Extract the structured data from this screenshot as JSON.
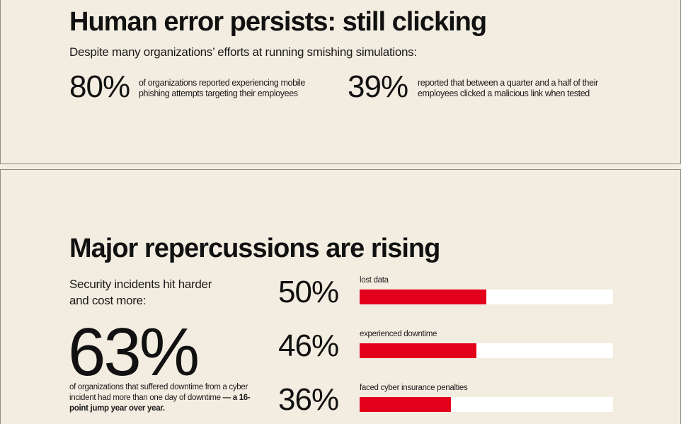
{
  "section1": {
    "title": "Human error persists: still clicking",
    "subtitle": "Despite many organizations’ efforts at running smishing simulations:",
    "stats": [
      {
        "value": "80%",
        "text": "of organizations reported experiencing mobile phishing attempts targeting their employees"
      },
      {
        "value": "39%",
        "text": "reported that between a quarter and a half of their employees clicked a malicious link when tested"
      }
    ]
  },
  "section2": {
    "title": "Major repercussions are rising",
    "intro": "Security incidents hit harder and cost more:",
    "headline_stat": "63%",
    "headline_text": "of organizations that suffered downtime from a cyber incident had more than one day of downtime",
    "headline_emphasis": "— a 16-point jump year over year.",
    "accent_color": "#e3001b"
  },
  "chart_data": {
    "type": "bar",
    "orientation": "horizontal",
    "categories": [
      "lost data",
      "experienced downtime",
      "faced cyber insurance penalties"
    ],
    "values": [
      50,
      46,
      36
    ],
    "value_labels": [
      "50%",
      "46%",
      "36%"
    ],
    "xlim": [
      0,
      100
    ],
    "title": "",
    "xlabel": "",
    "ylabel": ""
  }
}
